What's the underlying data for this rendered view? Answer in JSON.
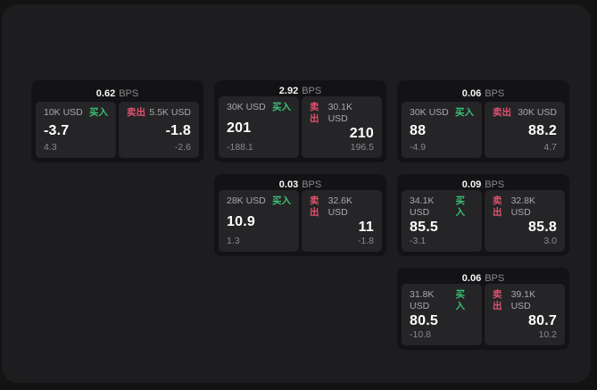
{
  "labels": {
    "bps_suffix": "BPS",
    "buy": "买入",
    "sell": "卖出"
  },
  "colors": {
    "buy_green": "#3dbe73",
    "sell_red": "#e0526e",
    "panel_bg": "#1d1d1f",
    "card_bg": "#131315",
    "tile_bg": "#252527"
  },
  "cards": [
    {
      "bps": "0.62",
      "buy": {
        "amount": "10K USD",
        "price": "-3.7",
        "sub": "4.3"
      },
      "sell": {
        "amount": "5.5K USD",
        "price": "-1.8",
        "sub": "-2.6"
      }
    },
    {
      "bps": "2.92",
      "buy": {
        "amount": "30K USD",
        "price": "201",
        "sub": "-188.1"
      },
      "sell": {
        "amount": "30.1K USD",
        "price": "210",
        "sub": "196.5"
      }
    },
    {
      "bps": "0.06",
      "buy": {
        "amount": "30K USD",
        "price": "88",
        "sub": "-4.9"
      },
      "sell": {
        "amount": "30K USD",
        "price": "88.2",
        "sub": "4.7"
      }
    },
    {
      "bps": "0.03",
      "buy": {
        "amount": "28K USD",
        "price": "10.9",
        "sub": "1.3"
      },
      "sell": {
        "amount": "32.6K USD",
        "price": "11",
        "sub": "-1.8"
      }
    },
    {
      "bps": "0.09",
      "buy": {
        "amount": "34.1K USD",
        "price": "85.5",
        "sub": "-3.1"
      },
      "sell": {
        "amount": "32.8K USD",
        "price": "85.8",
        "sub": "3.0"
      }
    },
    {
      "bps": "0.06",
      "buy": {
        "amount": "31.8K USD",
        "price": "80.5",
        "sub": "-10.8"
      },
      "sell": {
        "amount": "39.1K USD",
        "price": "80.7",
        "sub": "10.2"
      }
    }
  ]
}
